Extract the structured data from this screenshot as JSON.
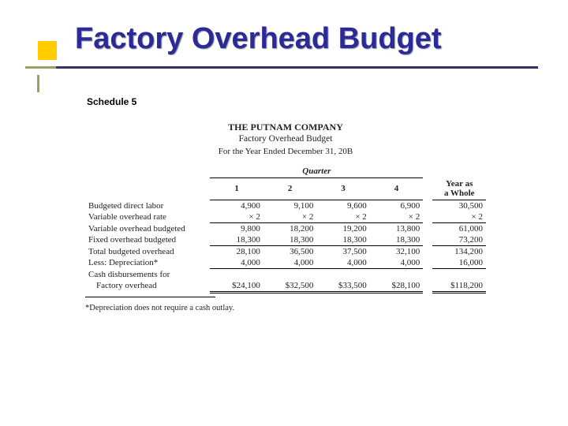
{
  "title": "Factory Overhead Budget",
  "schedule": "Schedule 5",
  "header": {
    "company": "THE PUTNAM COMPANY",
    "sub1": "Factory Overhead Budget",
    "sub2": "For the Year Ended December 31, 20B"
  },
  "quarter_label": "Quarter",
  "cols": {
    "c1": "1",
    "c2": "2",
    "c3": "3",
    "c4": "4",
    "year_l1": "Year as",
    "year_l2": "a Whole"
  },
  "rows": {
    "r1": {
      "label": "Budgeted direct labor",
      "v1": "4,900",
      "v2": "9,100",
      "v3": "9,600",
      "v4": "6,900",
      "vy": "30,500"
    },
    "r2": {
      "label": "Variable overhead rate",
      "v1": "× 2",
      "v2": "× 2",
      "v3": "× 2",
      "v4": "× 2",
      "vy": "× 2"
    },
    "r3": {
      "label": "Variable overhead budgeted",
      "v1": "9,800",
      "v2": "18,200",
      "v3": "19,200",
      "v4": "13,800",
      "vy": "61,000"
    },
    "r4": {
      "label": "Fixed overhead budgeted",
      "v1": "18,300",
      "v2": "18,300",
      "v3": "18,300",
      "v4": "18,300",
      "vy": "73,200"
    },
    "r5": {
      "label": "Total budgeted overhead",
      "v1": "28,100",
      "v2": "36,500",
      "v3": "37,500",
      "v4": "32,100",
      "vy": "134,200"
    },
    "r6": {
      "label": "Less: Depreciation*",
      "v1": "4,000",
      "v2": "4,000",
      "v3": "4,000",
      "v4": "4,000",
      "vy": "16,000"
    },
    "r7": {
      "label": "Cash disbursements for"
    },
    "r8": {
      "label": "Factory overhead",
      "v1": "$24,100",
      "v2": "$32,500",
      "v3": "$33,500",
      "v4": "$28,100",
      "vy": "$118,200"
    }
  },
  "footnote": "*Depreciation does not require a cash outlay.",
  "colors": {
    "title": "#2a2a99",
    "accent": "#ffcc00",
    "rule_dark": "#333366",
    "rule_light": "#9aa263"
  }
}
